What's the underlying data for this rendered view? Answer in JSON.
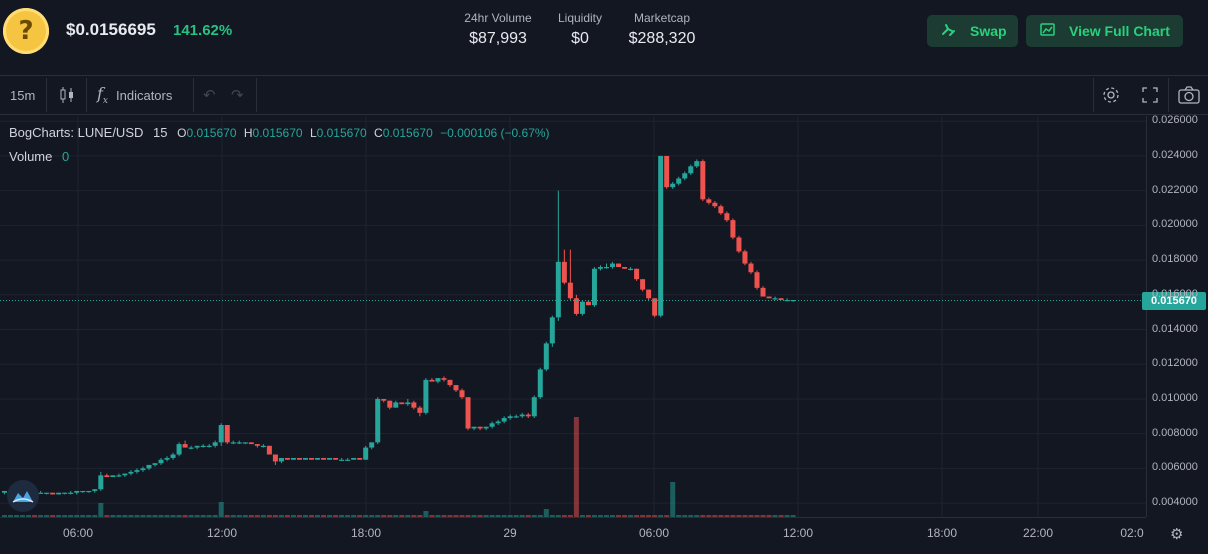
{
  "header": {
    "price": "$0.0156695",
    "change": "141.62%",
    "stats": [
      {
        "label": "24hr Volume",
        "value": "$87,993"
      },
      {
        "label": "Liquidity",
        "value": "$0"
      },
      {
        "label": "Marketcap",
        "value": "$288,320"
      }
    ],
    "swap_label": "Swap",
    "full_chart_label": "View Full Chart",
    "logo_glyph": "?"
  },
  "toolbar": {
    "interval": "15m",
    "indicators_label": "Indicators"
  },
  "legend": {
    "source": "BogCharts: LUNE/USD",
    "interval": "15",
    "o_key": "O",
    "o_val": "0.015670",
    "h_key": "H",
    "h_val": "0.015670",
    "l_key": "L",
    "l_val": "0.015670",
    "c_key": "C",
    "c_val": "0.015670",
    "delta": "−0.000106 (−0.67%)",
    "volume_label": "Volume",
    "volume_value": "0"
  },
  "colors": {
    "up": "#26a69a",
    "down": "#ef5350",
    "accent": "#29d17c",
    "background": "#131722"
  },
  "chart_data": {
    "type": "candlestick",
    "pair": "LUNE/USD",
    "current_price": "0.015670",
    "y_ticks": [
      "0.026000",
      "0.024000",
      "0.022000",
      "0.020000",
      "0.018000",
      "0.016000",
      "0.014000",
      "0.012000",
      "0.010000",
      "0.008000",
      "0.006000",
      "0.004000"
    ],
    "ylim": [
      0.0032,
      0.0263
    ],
    "x_ticks": [
      "06:00",
      "12:00",
      "18:00",
      "29",
      "06:00",
      "12:00",
      "18:00",
      "22:00",
      "02:0"
    ],
    "candles": [
      [
        0.0046,
        0.0047,
        0.0045,
        0.0047
      ],
      [
        0.0047,
        0.0047,
        0.0046,
        0.0047
      ],
      [
        0.0047,
        0.0047,
        0.0046,
        0.0047
      ],
      [
        0.0047,
        0.0047,
        0.0046,
        0.0047
      ],
      [
        0.0047,
        0.0047,
        0.0046,
        0.0047
      ],
      [
        0.0047,
        0.0047,
        0.0046,
        0.0046
      ],
      [
        0.0046,
        0.0047,
        0.0046,
        0.0046
      ],
      [
        0.0046,
        0.0046,
        0.0045,
        0.0046
      ],
      [
        0.0046,
        0.0046,
        0.0045,
        0.0045
      ],
      [
        0.0045,
        0.0046,
        0.0045,
        0.0046
      ],
      [
        0.0046,
        0.0046,
        0.0045,
        0.0046
      ],
      [
        0.0046,
        0.0047,
        0.0045,
        0.0046
      ],
      [
        0.0046,
        0.0047,
        0.0045,
        0.0047
      ],
      [
        0.0047,
        0.0047,
        0.0046,
        0.0047
      ],
      [
        0.0047,
        0.0047,
        0.0046,
        0.0047
      ],
      [
        0.0047,
        0.0048,
        0.0046,
        0.0048
      ],
      [
        0.0048,
        0.0058,
        0.0047,
        0.0056
      ],
      [
        0.0056,
        0.0057,
        0.0055,
        0.0055
      ],
      [
        0.0055,
        0.0056,
        0.0055,
        0.0056
      ],
      [
        0.0056,
        0.0057,
        0.0055,
        0.0056
      ],
      [
        0.0056,
        0.0057,
        0.0055,
        0.0057
      ],
      [
        0.0057,
        0.0059,
        0.0056,
        0.0058
      ],
      [
        0.0058,
        0.006,
        0.0057,
        0.0059
      ],
      [
        0.0059,
        0.0061,
        0.0058,
        0.006
      ],
      [
        0.006,
        0.0062,
        0.0059,
        0.0062
      ],
      [
        0.0062,
        0.0063,
        0.0061,
        0.0063
      ],
      [
        0.0063,
        0.0066,
        0.0062,
        0.0065
      ],
      [
        0.0065,
        0.0067,
        0.0064,
        0.0066
      ],
      [
        0.0066,
        0.0069,
        0.0065,
        0.0068
      ],
      [
        0.0068,
        0.0075,
        0.0067,
        0.0074
      ],
      [
        0.0074,
        0.0076,
        0.0072,
        0.0072
      ],
      [
        0.0072,
        0.0073,
        0.0071,
        0.0072
      ],
      [
        0.0072,
        0.0073,
        0.0071,
        0.0073
      ],
      [
        0.0073,
        0.0074,
        0.0072,
        0.0073
      ],
      [
        0.0073,
        0.0074,
        0.0072,
        0.0073
      ],
      [
        0.0073,
        0.0076,
        0.0072,
        0.0075
      ],
      [
        0.0075,
        0.0086,
        0.0073,
        0.0085
      ],
      [
        0.0085,
        0.0085,
        0.0074,
        0.0075
      ],
      [
        0.0075,
        0.0076,
        0.0074,
        0.0075
      ],
      [
        0.0075,
        0.0076,
        0.0074,
        0.0075
      ],
      [
        0.0075,
        0.0075,
        0.0074,
        0.0075
      ],
      [
        0.0075,
        0.0075,
        0.0074,
        0.0074
      ],
      [
        0.0074,
        0.0074,
        0.0072,
        0.0073
      ],
      [
        0.0073,
        0.0074,
        0.0072,
        0.0073
      ],
      [
        0.0073,
        0.0073,
        0.0068,
        0.0068
      ],
      [
        0.0068,
        0.0068,
        0.0062,
        0.0064
      ],
      [
        0.0064,
        0.0066,
        0.0063,
        0.0066
      ],
      [
        0.0066,
        0.0066,
        0.0065,
        0.0065
      ],
      [
        0.0065,
        0.0066,
        0.0065,
        0.0066
      ],
      [
        0.0066,
        0.0066,
        0.0065,
        0.0065
      ],
      [
        0.0065,
        0.0066,
        0.0065,
        0.0066
      ],
      [
        0.0066,
        0.0066,
        0.0065,
        0.0065
      ],
      [
        0.0065,
        0.0066,
        0.0065,
        0.0066
      ],
      [
        0.0066,
        0.0066,
        0.0065,
        0.0065
      ],
      [
        0.0065,
        0.0066,
        0.0065,
        0.0066
      ],
      [
        0.0066,
        0.0066,
        0.0065,
        0.0065
      ],
      [
        0.0065,
        0.0066,
        0.0065,
        0.0065
      ],
      [
        0.0065,
        0.0066,
        0.0065,
        0.0065
      ],
      [
        0.0065,
        0.0066,
        0.0065,
        0.0066
      ],
      [
        0.0066,
        0.0066,
        0.0065,
        0.0065
      ],
      [
        0.0065,
        0.0073,
        0.0065,
        0.0072
      ],
      [
        0.0072,
        0.0075,
        0.0071,
        0.0075
      ],
      [
        0.0075,
        0.0101,
        0.0074,
        0.01
      ],
      [
        0.01,
        0.01,
        0.0098,
        0.0099
      ],
      [
        0.0099,
        0.0099,
        0.0094,
        0.0095
      ],
      [
        0.0095,
        0.0099,
        0.0095,
        0.0098
      ],
      [
        0.0098,
        0.0098,
        0.0097,
        0.0097
      ],
      [
        0.0097,
        0.01,
        0.0096,
        0.0098
      ],
      [
        0.0098,
        0.0099,
        0.0094,
        0.0095
      ],
      [
        0.0095,
        0.0096,
        0.009,
        0.0092
      ],
      [
        0.0092,
        0.0112,
        0.0091,
        0.0111
      ],
      [
        0.0111,
        0.0112,
        0.011,
        0.011
      ],
      [
        0.011,
        0.0112,
        0.0109,
        0.0112
      ],
      [
        0.0112,
        0.0113,
        0.011,
        0.0111
      ],
      [
        0.0111,
        0.0111,
        0.0107,
        0.0108
      ],
      [
        0.0108,
        0.0108,
        0.0104,
        0.0105
      ],
      [
        0.0105,
        0.0106,
        0.01,
        0.0101
      ],
      [
        0.0101,
        0.0101,
        0.0082,
        0.0083
      ],
      [
        0.0083,
        0.0084,
        0.0082,
        0.0084
      ],
      [
        0.0084,
        0.0084,
        0.0082,
        0.0083
      ],
      [
        0.0083,
        0.0084,
        0.0082,
        0.0084
      ],
      [
        0.0084,
        0.0087,
        0.0083,
        0.0086
      ],
      [
        0.0086,
        0.0088,
        0.0085,
        0.0087
      ],
      [
        0.0087,
        0.009,
        0.0086,
        0.0089
      ],
      [
        0.0089,
        0.0091,
        0.0088,
        0.009
      ],
      [
        0.009,
        0.0091,
        0.0089,
        0.009
      ],
      [
        0.009,
        0.0092,
        0.0089,
        0.0091
      ],
      [
        0.0091,
        0.0092,
        0.0089,
        0.009
      ],
      [
        0.009,
        0.0102,
        0.0089,
        0.0101
      ],
      [
        0.0101,
        0.0118,
        0.01,
        0.0117
      ],
      [
        0.0117,
        0.0133,
        0.0116,
        0.0132
      ],
      [
        0.0132,
        0.0148,
        0.013,
        0.0147
      ],
      [
        0.0147,
        0.022,
        0.0145,
        0.0179
      ],
      [
        0.0179,
        0.0186,
        0.0166,
        0.0167
      ],
      [
        0.0167,
        0.0186,
        0.0157,
        0.0158
      ],
      [
        0.0158,
        0.016,
        0.0148,
        0.0149
      ],
      [
        0.0149,
        0.0157,
        0.0148,
        0.0156
      ],
      [
        0.0156,
        0.0157,
        0.0154,
        0.0154
      ],
      [
        0.0154,
        0.0176,
        0.0153,
        0.0175
      ],
      [
        0.0175,
        0.0177,
        0.0174,
        0.0176
      ],
      [
        0.0176,
        0.0178,
        0.0175,
        0.0176
      ],
      [
        0.0176,
        0.0179,
        0.0175,
        0.0178
      ],
      [
        0.0178,
        0.0178,
        0.0176,
        0.0176
      ],
      [
        0.0176,
        0.0176,
        0.0175,
        0.0175
      ],
      [
        0.0175,
        0.0176,
        0.0174,
        0.0175
      ],
      [
        0.0175,
        0.0175,
        0.0168,
        0.0169
      ],
      [
        0.0169,
        0.0169,
        0.0162,
        0.0163
      ],
      [
        0.0163,
        0.0163,
        0.0157,
        0.0158
      ],
      [
        0.0158,
        0.0158,
        0.0147,
        0.0148
      ],
      [
        0.0148,
        0.024,
        0.0147,
        0.024
      ],
      [
        0.024,
        0.024,
        0.0221,
        0.0222
      ],
      [
        0.0222,
        0.0225,
        0.0221,
        0.0224
      ],
      [
        0.0224,
        0.0228,
        0.0223,
        0.0227
      ],
      [
        0.0227,
        0.0231,
        0.0226,
        0.023
      ],
      [
        0.023,
        0.0235,
        0.0229,
        0.0234
      ],
      [
        0.0234,
        0.0238,
        0.0233,
        0.0237
      ],
      [
        0.0237,
        0.0238,
        0.0214,
        0.0215
      ],
      [
        0.0215,
        0.0216,
        0.0212,
        0.0213
      ],
      [
        0.0213,
        0.0214,
        0.021,
        0.0211
      ],
      [
        0.0211,
        0.0212,
        0.0206,
        0.0207
      ],
      [
        0.0207,
        0.0208,
        0.0202,
        0.0203
      ],
      [
        0.0203,
        0.0204,
        0.0192,
        0.0193
      ],
      [
        0.0193,
        0.0194,
        0.0184,
        0.0185
      ],
      [
        0.0185,
        0.0186,
        0.0177,
        0.0178
      ],
      [
        0.0178,
        0.0179,
        0.0172,
        0.0173
      ],
      [
        0.0173,
        0.0174,
        0.0163,
        0.0164
      ],
      [
        0.0164,
        0.0165,
        0.0159,
        0.0159
      ],
      [
        0.0159,
        0.0159,
        0.0158,
        0.0158
      ],
      [
        0.0158,
        0.0159,
        0.0157,
        0.0158
      ],
      [
        0.0158,
        0.0158,
        0.0157,
        0.0157
      ],
      [
        0.0157,
        0.0158,
        0.0157,
        0.0157
      ],
      [
        0.0157,
        0.0157,
        0.0156,
        0.0157
      ]
    ],
    "volume": [
      0,
      0,
      0,
      0,
      0,
      0,
      0,
      0,
      0,
      0,
      0,
      0,
      0,
      0,
      0,
      0,
      14,
      0,
      0,
      0,
      0,
      0,
      0,
      0,
      0,
      0,
      0,
      0,
      0,
      0,
      0,
      0,
      0,
      0,
      0,
      0,
      15,
      0,
      0,
      0,
      0,
      0,
      0,
      0,
      0,
      0,
      0,
      0,
      0,
      0,
      0,
      0,
      0,
      0,
      0,
      0,
      0,
      0,
      0,
      0,
      0,
      0,
      0,
      0,
      0,
      0,
      0,
      0,
      0,
      0,
      6,
      0,
      0,
      0,
      0,
      0,
      0,
      0,
      0,
      0,
      0,
      0,
      0,
      0,
      0,
      0,
      0,
      0,
      0,
      0,
      8,
      0,
      0,
      0,
      0,
      100,
      0,
      0,
      0,
      0,
      0,
      0,
      0,
      0,
      0,
      0,
      0,
      0,
      0,
      0,
      0,
      35,
      0,
      0,
      0,
      0,
      0,
      0,
      0,
      0,
      0,
      0,
      0,
      0,
      0,
      0,
      0,
      0,
      0,
      0,
      0,
      0
    ]
  }
}
